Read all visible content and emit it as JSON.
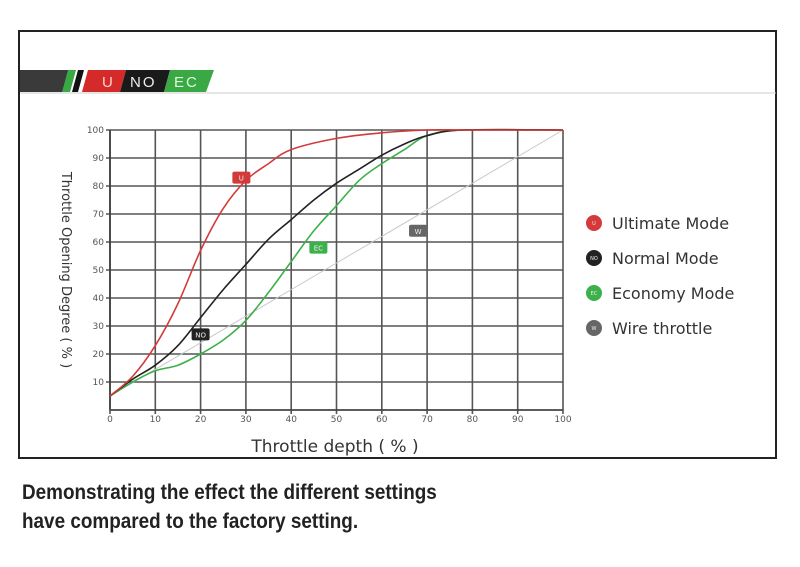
{
  "header_logo": {
    "segments": [
      "U",
      "NO",
      "EC"
    ],
    "colors": [
      "#d42a2a",
      "#1a1a1a",
      "#3aa845"
    ]
  },
  "caption": {
    "line1": "Demonstrating the effect the different settings",
    "line2": "have compared to the factory setting."
  },
  "chart_data": {
    "type": "line",
    "xlabel": "Throttle depth ( % )",
    "ylabel": "Throttle Opening Degree ( % )",
    "xlim": [
      0,
      100
    ],
    "ylim": [
      0,
      100
    ],
    "xticks": [
      0,
      10,
      20,
      30,
      40,
      50,
      60,
      70,
      80,
      90,
      100
    ],
    "yticks": [
      10,
      20,
      30,
      40,
      50,
      60,
      70,
      80,
      90,
      100
    ],
    "grid": true,
    "legend_position": "right",
    "series": [
      {
        "name": "Ultimate Mode",
        "badge": "U",
        "color": "#d43a3a",
        "badge_at": [
          29,
          83
        ],
        "x": [
          0,
          5,
          10,
          15,
          20,
          25,
          30,
          35,
          40,
          50,
          60,
          70,
          78,
          100
        ],
        "y": [
          5,
          12,
          23,
          38,
          57,
          72,
          82,
          88,
          93,
          97,
          99,
          100,
          100,
          100
        ]
      },
      {
        "name": "Normal Mode",
        "badge": "NO",
        "color": "#222222",
        "badge_at": [
          20,
          27
        ],
        "x": [
          0,
          5,
          10,
          15,
          20,
          25,
          30,
          35,
          40,
          45,
          50,
          55,
          60,
          65,
          70,
          78,
          100
        ],
        "y": [
          5,
          11,
          16,
          23,
          33,
          43,
          52,
          61,
          68,
          75,
          81,
          86,
          91,
          95,
          98,
          100,
          100
        ]
      },
      {
        "name": "Economy Mode",
        "badge": "EC",
        "color": "#3cb04a",
        "badge_at": [
          46,
          58
        ],
        "x": [
          0,
          5,
          10,
          15,
          20,
          25,
          30,
          35,
          40,
          45,
          50,
          55,
          60,
          65,
          70,
          78,
          100
        ],
        "y": [
          5,
          10,
          14,
          16,
          20,
          25,
          32,
          42,
          53,
          64,
          73,
          82,
          88,
          93,
          98,
          100,
          100
        ]
      },
      {
        "name": "Wire throttle",
        "badge": "W",
        "color": "#c8c8c8",
        "badge_at": [
          68,
          64
        ],
        "x": [
          0,
          100
        ],
        "y": [
          5,
          100
        ]
      }
    ]
  }
}
